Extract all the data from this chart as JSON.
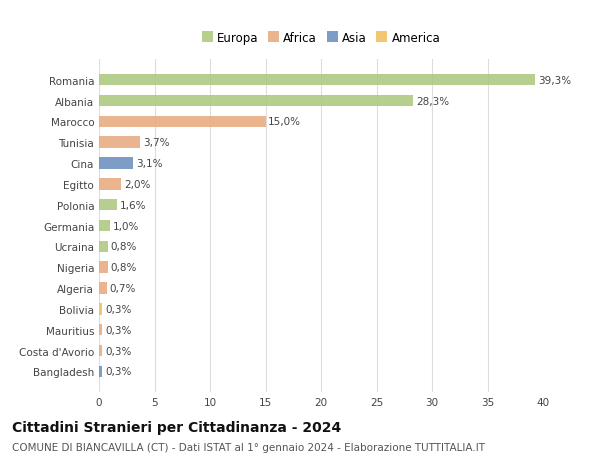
{
  "categories": [
    "Romania",
    "Albania",
    "Marocco",
    "Tunisia",
    "Cina",
    "Egitto",
    "Polonia",
    "Germania",
    "Ucraina",
    "Nigeria",
    "Algeria",
    "Bolivia",
    "Mauritius",
    "Costa d'Avorio",
    "Bangladesh"
  ],
  "values": [
    39.3,
    28.3,
    15.0,
    3.7,
    3.1,
    2.0,
    1.6,
    1.0,
    0.8,
    0.8,
    0.7,
    0.3,
    0.3,
    0.3,
    0.3
  ],
  "labels": [
    "39,3%",
    "28,3%",
    "15,0%",
    "3,7%",
    "3,1%",
    "2,0%",
    "1,6%",
    "1,0%",
    "0,8%",
    "0,8%",
    "0,7%",
    "0,3%",
    "0,3%",
    "0,3%",
    "0,3%"
  ],
  "continents": [
    "Europa",
    "Europa",
    "Africa",
    "Africa",
    "Asia",
    "Africa",
    "Europa",
    "Europa",
    "Europa",
    "Africa",
    "Africa",
    "America",
    "Africa",
    "Africa",
    "Asia"
  ],
  "continent_colors": {
    "Europa": "#adc97f",
    "Africa": "#e8aa7e",
    "Asia": "#6b8fbf",
    "America": "#f0c060"
  },
  "legend_order": [
    "Europa",
    "Africa",
    "Asia",
    "America"
  ],
  "title": "Cittadini Stranieri per Cittadinanza - 2024",
  "subtitle": "COMUNE DI BIANCAVILLA (CT) - Dati ISTAT al 1° gennaio 2024 - Elaborazione TUTTITALIA.IT",
  "xlim": [
    0,
    40
  ],
  "xticks": [
    0,
    5,
    10,
    15,
    20,
    25,
    30,
    35,
    40
  ],
  "background_color": "#ffffff",
  "bar_height": 0.55,
  "title_fontsize": 10,
  "subtitle_fontsize": 7.5,
  "label_fontsize": 7.5,
  "tick_fontsize": 7.5,
  "legend_fontsize": 8.5
}
